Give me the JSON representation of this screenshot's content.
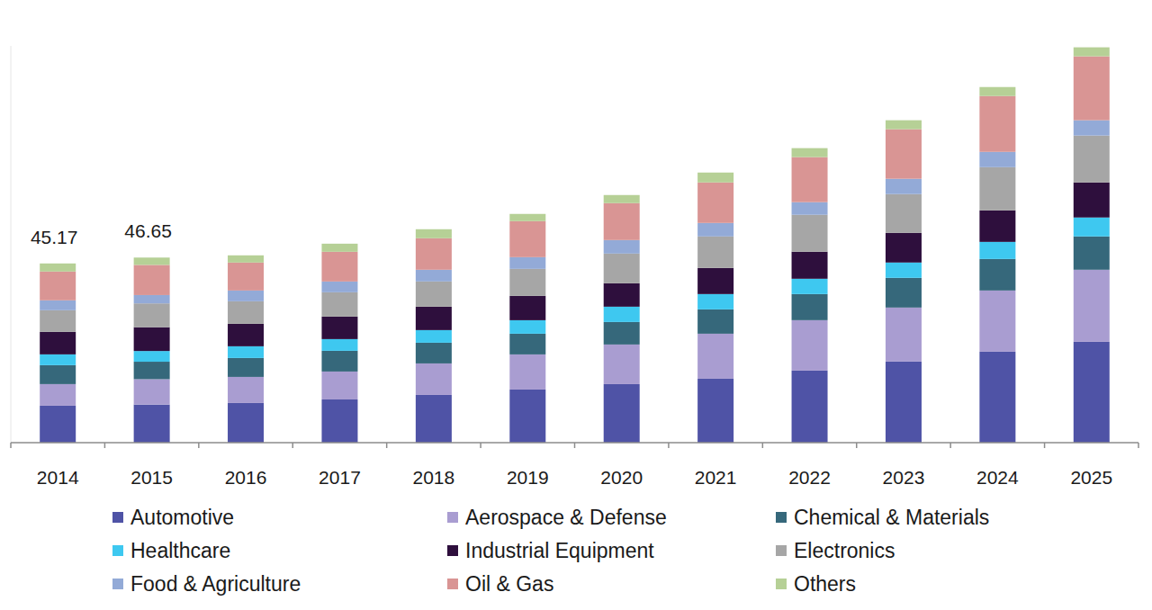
{
  "chart_data": {
    "type": "bar",
    "stacked": true,
    "grid": false,
    "legend": "bottom",
    "tick_labels": "x",
    "categories": [
      "2014",
      "2015",
      "2016",
      "2017",
      "2018",
      "2019",
      "2020",
      "2021",
      "2022",
      "2023",
      "2024",
      "2025"
    ],
    "ylim": [
      0,
      100
    ],
    "annotations": [
      {
        "category": "2014",
        "value": 45.17,
        "label": "45.17"
      },
      {
        "category": "2015",
        "value": 46.65,
        "label": "46.65"
      }
    ],
    "series": [
      {
        "name": "Automotive",
        "color": "#4f53a6",
        "values": [
          9.31,
          9.6,
          9.99,
          10.89,
          12.03,
          13.39,
          14.75,
          16.11,
          18.16,
          20.43,
          22.92,
          25.42
        ]
      },
      {
        "name": "Aerospace & Defense",
        "color": "#a99dd1",
        "values": [
          5.45,
          6.4,
          6.58,
          7.04,
          7.94,
          8.85,
          9.99,
          11.35,
          12.71,
          13.62,
          15.43,
          18.16
        ]
      },
      {
        "name": "Chemical & Materials",
        "color": "#36687b",
        "values": [
          4.77,
          4.4,
          4.77,
          5.22,
          5.22,
          5.22,
          5.67,
          6.13,
          6.58,
          7.49,
          7.94,
          8.4
        ]
      },
      {
        "name": "Healthcare",
        "color": "#3ec8f0",
        "values": [
          2.72,
          2.7,
          2.95,
          2.95,
          3.18,
          3.4,
          3.86,
          3.86,
          3.86,
          3.86,
          4.31,
          4.77
        ]
      },
      {
        "name": "Industrial Equipment",
        "color": "#2e0f3d",
        "values": [
          5.67,
          6.0,
          5.67,
          5.67,
          5.9,
          6.13,
          5.9,
          6.58,
          6.81,
          7.49,
          7.94,
          8.85
        ]
      },
      {
        "name": "Electronics",
        "color": "#a6a6a6",
        "values": [
          5.45,
          6.0,
          5.67,
          6.13,
          6.36,
          6.81,
          7.49,
          7.94,
          9.31,
          9.76,
          10.89,
          11.8
        ]
      },
      {
        "name": "Food & Agriculture",
        "color": "#93aad7",
        "values": [
          2.5,
          2.1,
          2.72,
          2.72,
          2.95,
          2.95,
          3.4,
          3.4,
          3.18,
          3.86,
          3.86,
          3.86
        ]
      },
      {
        "name": "Oil & Gas",
        "color": "#d99594",
        "values": [
          7.26,
          7.6,
          7.04,
          7.49,
          7.94,
          9.08,
          9.31,
          10.21,
          11.35,
          12.48,
          14.07,
          16.11
        ]
      },
      {
        "name": "Others",
        "color": "#b6d096",
        "values": [
          2.04,
          1.85,
          1.82,
          2.04,
          2.27,
          1.82,
          2.04,
          2.5,
          2.27,
          2.27,
          2.27,
          2.27
        ]
      }
    ]
  }
}
